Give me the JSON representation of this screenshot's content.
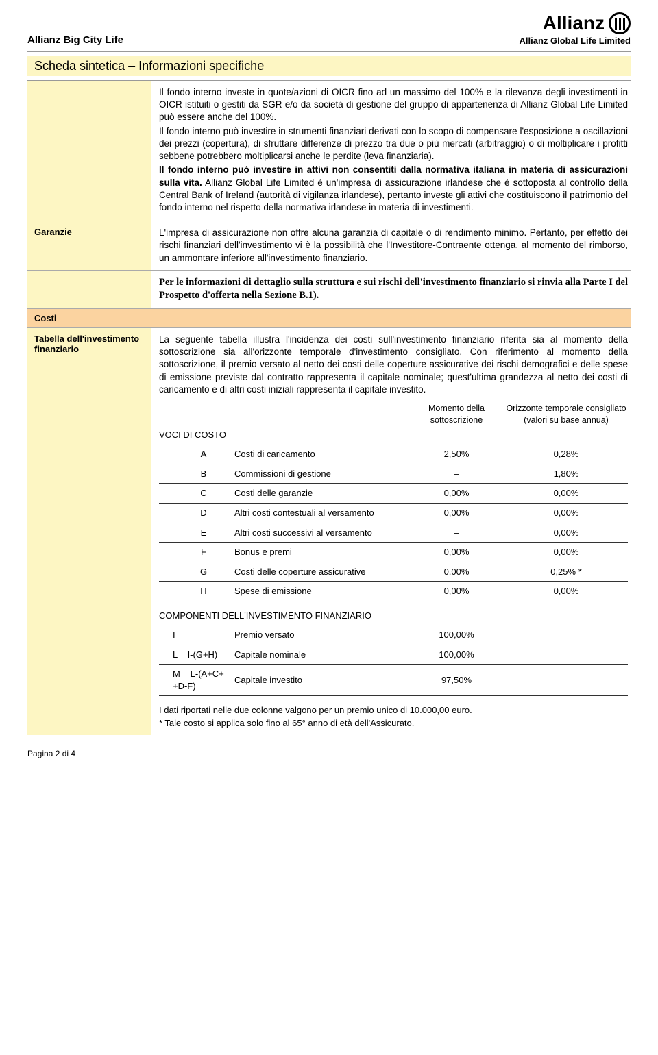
{
  "header": {
    "product": "Allianz Big City Life",
    "brand": "Allianz",
    "subtitle": "Allianz Global Life Limited"
  },
  "title": {
    "main": "Scheda sintetica",
    "sub": "– Informazioni specifiche"
  },
  "block1": {
    "p1": "Il fondo interno investe in quote/azioni di OICR fino ad un massimo del 100% e la rilevanza degli investimenti in OICR istituiti o gestiti da SGR e/o da società di gestione del gruppo di appartenenza di Allianz Global Life Limited può essere anche del 100%.",
    "p2": "Il fondo interno può investire in strumenti finanziari derivati con lo scopo di compensare l'esposizione a oscillazioni dei prezzi (copertura), di sfruttare differenze di prezzo tra due o più mercati (arbitraggio) o di moltiplicare i profitti sebbene potrebbero moltiplicarsi anche le perdite (leva finanziaria).",
    "p3a": "Il fondo interno può investire in attivi non consentiti dalla normativa italiana in materia di assicurazioni sulla vita.",
    "p3b": " Allianz Global Life Limited è un'impresa di assicurazione irlandese che è sottoposta al controllo della Central Bank of Ireland (autorità di vigilanza irlandese), pertanto investe gli attivi che costituiscono il patrimonio del fondo interno nel rispetto della normativa irlandese in materia di investimenti."
  },
  "garanzie": {
    "label": "Garanzie",
    "text": "L'impresa di assicurazione non offre alcuna garanzia di capitale o di rendimento minimo. Pertanto, per effetto dei rischi finanziari dell'investimento vi è la possibilità che l'Investitore-Contraente ottenga, al momento del rimborso, un ammontare inferiore all'investimento finanziario."
  },
  "serif": "Per le informazioni di dettaglio sulla struttura e sui rischi dell'investimento finanziario si rinvia alla Parte I del Prospetto d'offerta nella Sezione B.1).",
  "costi": {
    "label": "Costi"
  },
  "tabella": {
    "label": "Tabella dell'investimento finanziario",
    "intro": "La seguente tabella illustra l'incidenza dei costi sull'investimento finanziario riferita sia al momento della sottoscrizione sia all'orizzonte temporale d'investimento consigliato. Con riferimento al momento della sottoscrizione, il premio versato al netto dei costi delle coperture assicurative dei rischi demografici e delle spese di emissione previste dal contratto rappresenta il capitale nominale; quest'ultima grandezza al netto dei costi di caricamento e di altri costi iniziali rappresenta il capitale investito.",
    "head1": "Momento della sottoscrizione",
    "head2": "Orizzonte temporale consigliato (valori su base annua)",
    "voci": "VOCI DI COSTO",
    "rows": [
      {
        "k": "A",
        "d": "Costi di caricamento",
        "v1": "2,50%",
        "v2": "0,28%"
      },
      {
        "k": "B",
        "d": "Commissioni di gestione",
        "v1": "–",
        "v2": "1,80%"
      },
      {
        "k": "C",
        "d": "Costi delle garanzie",
        "v1": "0,00%",
        "v2": "0,00%"
      },
      {
        "k": "D",
        "d": "Altri costi contestuali al versamento",
        "v1": "0,00%",
        "v2": "0,00%"
      },
      {
        "k": "E",
        "d": "Altri costi successivi al versamento",
        "v1": "–",
        "v2": "0,00%"
      },
      {
        "k": "F",
        "d": "Bonus e premi",
        "v1": "0,00%",
        "v2": "0,00%"
      },
      {
        "k": "G",
        "d": "Costi delle coperture assicurative",
        "v1": "0,00%",
        "v2": "0,25% *"
      },
      {
        "k": "H",
        "d": "Spese di emissione",
        "v1": "0,00%",
        "v2": "0,00%"
      }
    ],
    "comp_title": "COMPONENTI DELL'INVESTIMENTO FINANZIARIO",
    "comp_rows": [
      {
        "k": "I",
        "d": "Premio versato",
        "v1": "100,00%",
        "v2": ""
      },
      {
        "k": "L = I-(G+H)",
        "d": "Capitale nominale",
        "v1": "100,00%",
        "v2": ""
      },
      {
        "k": "M = L-(A+C+ +D-F)",
        "d": "Capitale investito",
        "v1": "97,50%",
        "v2": ""
      }
    ],
    "note1": "I dati riportati nelle due colonne valgono per un premio unico di 10.000,00 euro.",
    "note2": "* Tale costo si applica solo fino al 65° anno di età dell'Assicurato."
  },
  "pagenum": "Pagina 2 di 4"
}
